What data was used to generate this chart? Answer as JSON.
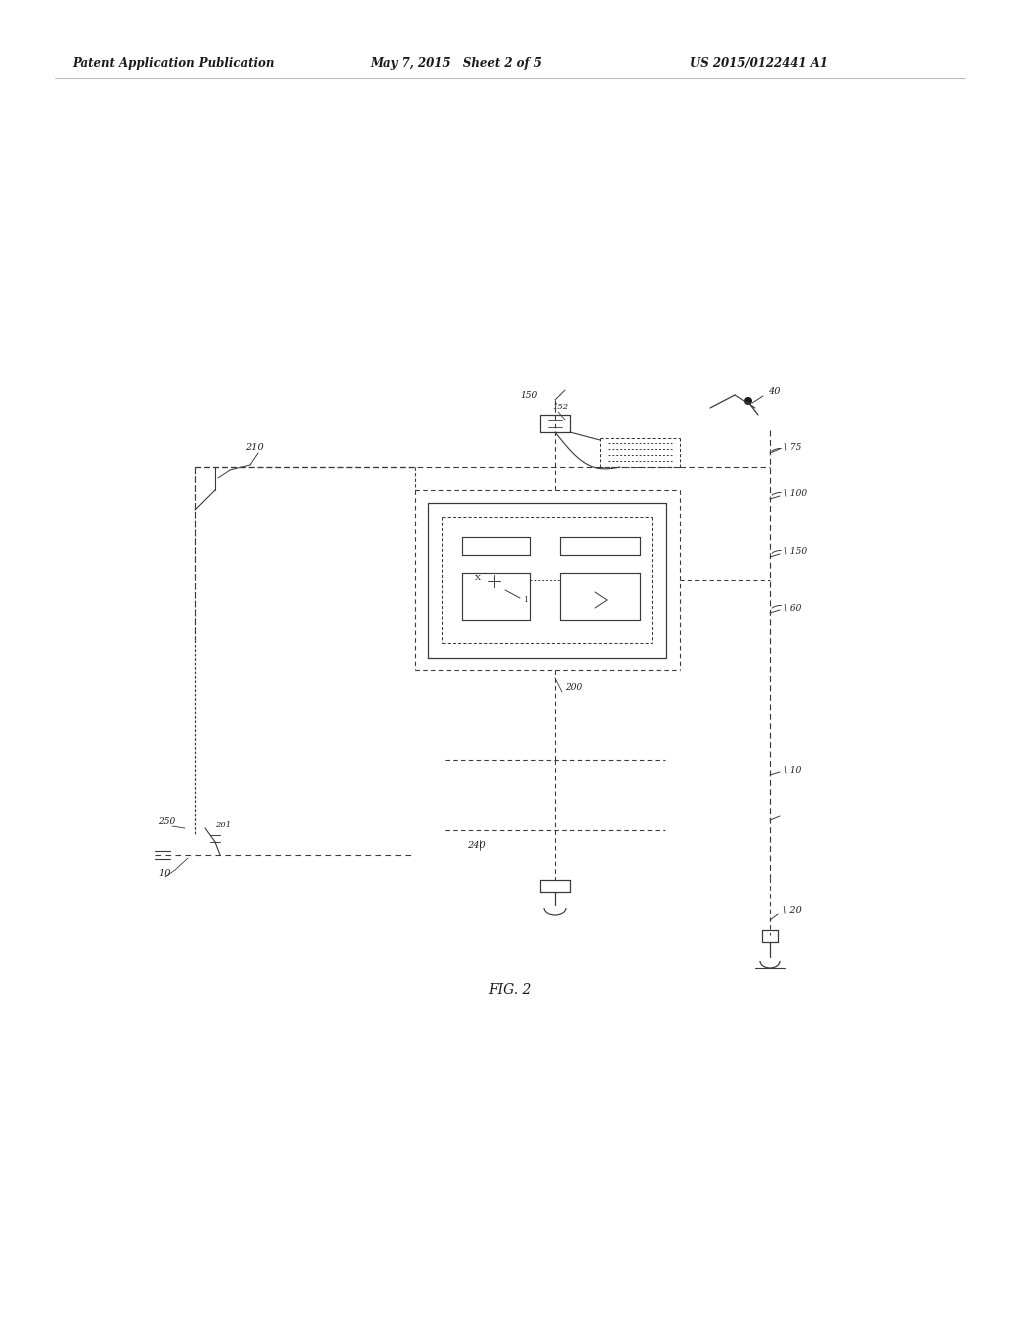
{
  "header_left": "Patent Application Publication",
  "header_mid": "May 7, 2015   Sheet 2 of 5",
  "header_right": "US 2015/0122441 A1",
  "title": "FIG. 2",
  "bg_color": "#ffffff",
  "lc": "#3a3a3a"
}
